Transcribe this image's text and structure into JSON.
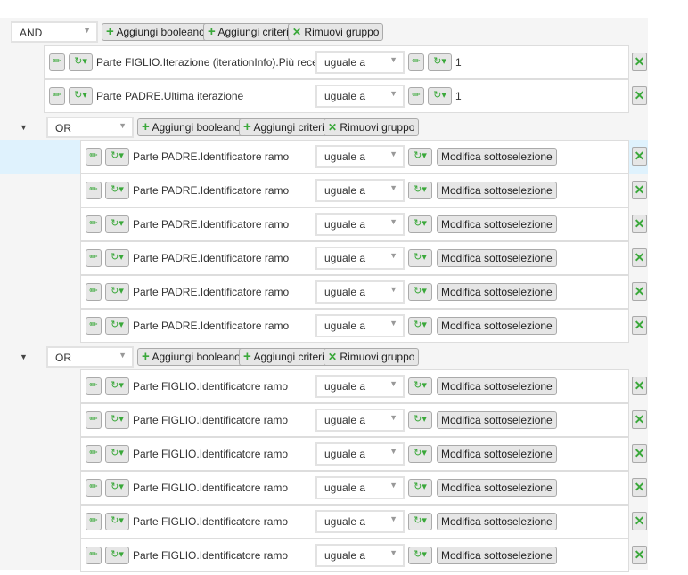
{
  "toolbar": {
    "add_boolean": "Aggiungi booleano",
    "add_criteria": "Aggiungi criteri",
    "remove_group": "Rimuovi gruppo"
  },
  "root": {
    "operator": "AND",
    "criteria": [
      {
        "field": "Parte FIGLIO.Iterazione (iterationInfo).Più recente",
        "comparison": "uguale a",
        "value": "1"
      },
      {
        "field": "Parte PADRE.Ultima iterazione",
        "comparison": "uguale a",
        "value": "1"
      }
    ],
    "groups": [
      {
        "operator": "OR",
        "criteria": [
          {
            "field": "Parte PADRE.Identificatore ramo",
            "comparison": "uguale a",
            "action": "Modifica sottoselezione"
          },
          {
            "field": "Parte PADRE.Identificatore ramo",
            "comparison": "uguale a",
            "action": "Modifica sottoselezione"
          },
          {
            "field": "Parte PADRE.Identificatore ramo",
            "comparison": "uguale a",
            "action": "Modifica sottoselezione"
          },
          {
            "field": "Parte PADRE.Identificatore ramo",
            "comparison": "uguale a",
            "action": "Modifica sottoselezione"
          },
          {
            "field": "Parte PADRE.Identificatore ramo",
            "comparison": "uguale a",
            "action": "Modifica sottoselezione"
          },
          {
            "field": "Parte PADRE.Identificatore ramo",
            "comparison": "uguale a",
            "action": "Modifica sottoselezione"
          }
        ]
      },
      {
        "operator": "OR",
        "criteria": [
          {
            "field": "Parte FIGLIO.Identificatore ramo",
            "comparison": "uguale a",
            "action": "Modifica sottoselezione"
          },
          {
            "field": "Parte FIGLIO.Identificatore ramo",
            "comparison": "uguale a",
            "action": "Modifica sottoselezione"
          },
          {
            "field": "Parte FIGLIO.Identificatore ramo",
            "comparison": "uguale a",
            "action": "Modifica sottoselezione"
          },
          {
            "field": "Parte FIGLIO.Identificatore ramo",
            "comparison": "uguale a",
            "action": "Modifica sottoselezione"
          },
          {
            "field": "Parte FIGLIO.Identificatore ramo",
            "comparison": "uguale a",
            "action": "Modifica sottoselezione"
          },
          {
            "field": "Parte FIGLIO.Identificatore ramo",
            "comparison": "uguale a",
            "action": "Modifica sottoselezione"
          }
        ]
      }
    ]
  },
  "colors": {
    "accent": "#3aa83a",
    "highlight": "#dff2fd",
    "panel": "#f5f5f5"
  }
}
